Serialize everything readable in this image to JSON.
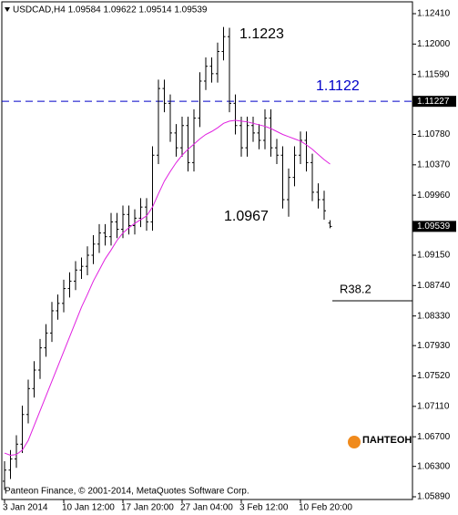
{
  "chart_data": {
    "type": "ohlc",
    "title": "USDCAD,H4  1.09584 1.09622 1.09514 1.09539",
    "categories": [
      "3 Jan 2014",
      null,
      null,
      null,
      null,
      null,
      null,
      null,
      null,
      null,
      "10 Jan 12:00",
      null,
      null,
      null,
      null,
      null,
      null,
      null,
      null,
      null,
      "17 Jan 20:00",
      null,
      null,
      null,
      null,
      null,
      null,
      null,
      null,
      null,
      "27 Jan 04:00",
      null,
      null,
      null,
      null,
      null,
      null,
      null,
      null,
      null,
      "3 Feb 12:00",
      null,
      null,
      null,
      null,
      null,
      null,
      null,
      null,
      null,
      "10 Feb 20:00",
      null,
      null,
      null,
      null,
      null
    ],
    "open": [
      1.061,
      1.0625,
      1.064,
      1.066,
      1.07,
      1.0735,
      1.076,
      1.079,
      1.081,
      1.084,
      1.085,
      1.087,
      1.088,
      1.0895,
      1.09,
      1.0915,
      1.093,
      1.0945,
      1.094,
      1.096,
      1.095,
      1.097,
      1.0955,
      1.0965,
      1.098,
      1.096,
      1.105,
      1.114,
      1.112,
      1.108,
      1.106,
      1.109,
      1.104,
      1.11,
      1.115,
      1.117,
      1.116,
      1.119,
      1.121,
      1.112,
      1.109,
      1.106,
      1.109,
      1.108,
      1.107,
      1.11,
      1.106,
      1.105,
      1.099,
      1.102,
      1.105,
      1.107,
      1.104,
      1.1,
      1.099,
      1.09584
    ],
    "high": [
      1.0637,
      1.0652,
      1.0672,
      1.0712,
      1.0747,
      1.0772,
      1.0802,
      1.0822,
      1.0852,
      1.0862,
      1.0882,
      1.0892,
      1.0907,
      1.0912,
      1.0927,
      1.0942,
      1.0957,
      1.0957,
      1.0972,
      1.0972,
      1.0982,
      1.0982,
      1.0977,
      1.0992,
      1.0992,
      1.1062,
      1.1152,
      1.1152,
      1.1132,
      1.1092,
      1.1102,
      1.1102,
      1.1112,
      1.1162,
      1.1182,
      1.1182,
      1.1202,
      1.1223,
      1.1222,
      1.1132,
      1.1102,
      1.1102,
      1.1102,
      1.1092,
      1.1112,
      1.1112,
      1.1072,
      1.1062,
      1.1032,
      1.1062,
      1.1082,
      1.1082,
      1.1052,
      1.1012,
      1.1002,
      1.09622
    ],
    "low": [
      1.0598,
      1.0613,
      1.0628,
      1.0648,
      1.0688,
      1.0723,
      1.0748,
      1.0778,
      1.0798,
      1.0828,
      1.0838,
      1.0858,
      1.0868,
      1.0883,
      1.0888,
      1.0903,
      1.0918,
      1.0928,
      1.0928,
      1.0938,
      1.0938,
      1.0943,
      1.0943,
      1.0953,
      1.0948,
      1.0948,
      1.1038,
      1.1108,
      1.1068,
      1.1048,
      1.1048,
      1.1028,
      1.1028,
      1.1088,
      1.1138,
      1.1148,
      1.1148,
      1.1178,
      1.1108,
      1.1078,
      1.1048,
      1.1048,
      1.1068,
      1.1058,
      1.1058,
      1.1048,
      1.1038,
      1.0978,
      1.0967,
      1.1008,
      1.1038,
      1.1028,
      1.0988,
      1.0978,
      1.0963,
      1.09514
    ],
    "close": [
      1.0625,
      1.064,
      1.066,
      1.07,
      1.0735,
      1.076,
      1.079,
      1.081,
      1.084,
      1.085,
      1.087,
      1.088,
      1.0895,
      1.09,
      1.0915,
      1.093,
      1.0945,
      1.094,
      1.096,
      1.095,
      1.097,
      1.0955,
      1.0965,
      1.098,
      1.096,
      1.105,
      1.114,
      1.112,
      1.108,
      1.106,
      1.109,
      1.104,
      1.11,
      1.115,
      1.117,
      1.116,
      1.119,
      1.121,
      1.112,
      1.109,
      1.106,
      1.109,
      1.108,
      1.107,
      1.11,
      1.106,
      1.105,
      1.099,
      1.102,
      1.105,
      1.107,
      1.104,
      1.1,
      1.099,
      1.0975,
      1.09539
    ],
    "color": "#000000",
    "ma": {
      "color": "#e020e0",
      "values": [
        1.0648,
        1.0645,
        1.0646,
        1.0652,
        1.0665,
        1.0685,
        1.0705,
        1.0725,
        1.0745,
        1.0765,
        1.0785,
        1.0805,
        1.0825,
        1.0845,
        1.0862,
        1.088,
        1.0895,
        1.091,
        1.0922,
        1.0935,
        1.0945,
        1.0952,
        1.0958,
        1.0963,
        1.0968,
        1.098,
        1.0998,
        1.1015,
        1.1028,
        1.104,
        1.105,
        1.1058,
        1.1065,
        1.1072,
        1.1078,
        1.1082,
        1.1087,
        1.1093,
        1.1096,
        1.1097,
        1.1096,
        1.1095,
        1.1093,
        1.1091,
        1.1089,
        1.1086,
        1.1082,
        1.1078,
        1.1075,
        1.1072,
        1.1069,
        1.1064,
        1.1058,
        1.1051,
        1.1044,
        1.1038
      ]
    },
    "ylim": [
      1.05853,
      1.1257
    ],
    "yticks": [
      {
        "value": 1.1241,
        "label": "1.12410"
      },
      {
        "value": 1.12,
        "label": "1.12000"
      },
      {
        "value": 1.1159,
        "label": "1.11590"
      },
      {
        "value": 1.1078,
        "label": "1.10780"
      },
      {
        "value": 1.1037,
        "label": "1.10370"
      },
      {
        "value": 1.0996,
        "label": "1.09960"
      },
      {
        "value": 1.0915,
        "label": "1.09150"
      },
      {
        "value": 1.0874,
        "label": "1.08740"
      },
      {
        "value": 1.0833,
        "label": "1.08330"
      },
      {
        "value": 1.0793,
        "label": "1.07930"
      },
      {
        "value": 1.0752,
        "label": "1.07520"
      },
      {
        "value": 1.0711,
        "label": "1.07110"
      },
      {
        "value": 1.067,
        "label": "1.06700"
      },
      {
        "value": 1.063,
        "label": "1.06300"
      },
      {
        "value": 1.0589,
        "label": "1.05890"
      }
    ],
    "hline": {
      "value": 1.11227,
      "color": "#0000c8"
    },
    "bid": 1.09539,
    "annotations": [
      "1.1223",
      "1.1122",
      "1.0967"
    ],
    "level": {
      "label": "R38.2",
      "value": 1.08535
    },
    "footer": "Panteon Finance, © 2001-2014, MetaQuotes Software Corp.",
    "logo": "ПАНТЕОН"
  }
}
